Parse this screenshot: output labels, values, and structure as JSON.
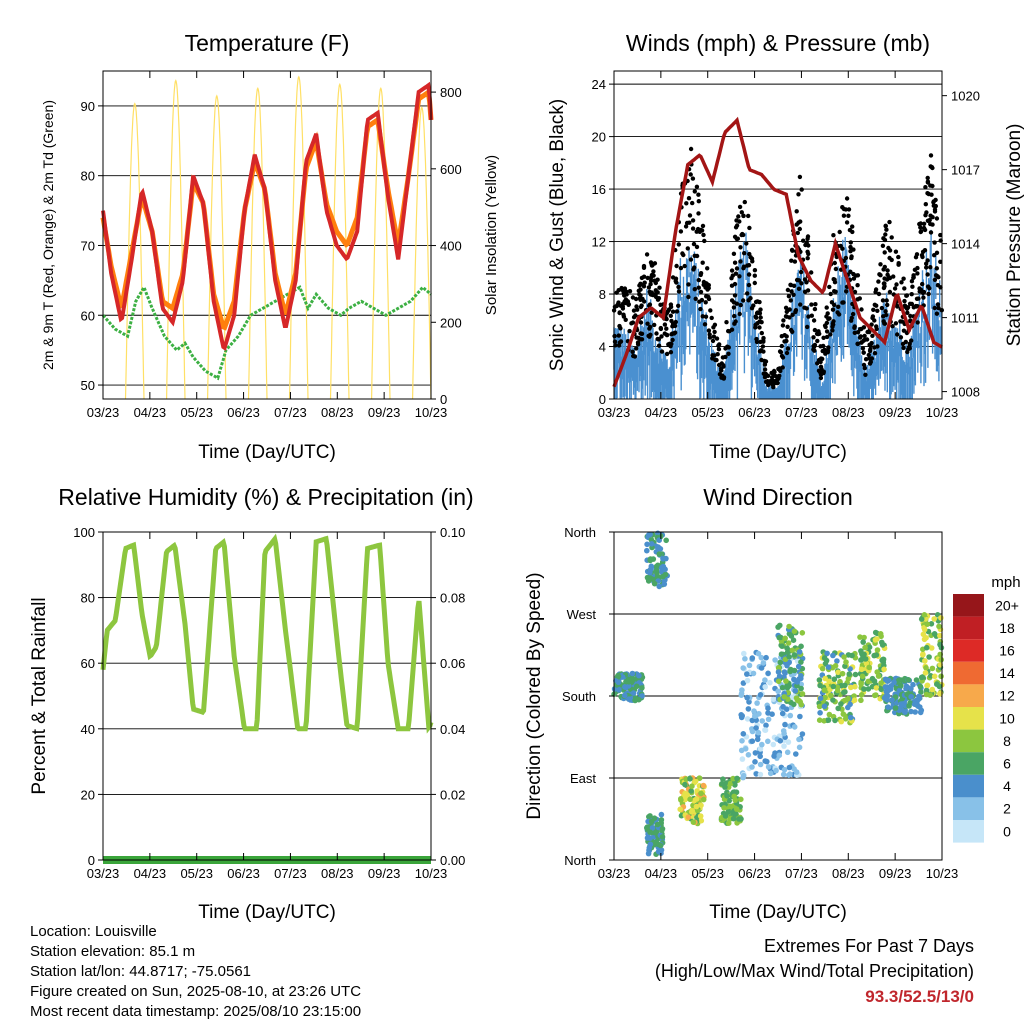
{
  "colors": {
    "temp2m": "#d62728",
    "temp9m": "#ff7f0e",
    "dewpoint": "#3cb043",
    "solar": "#ffe066",
    "wind": "#4a90d0",
    "gust": "#000000",
    "pressure": "#a31515",
    "rh": "#8dc63f",
    "precip": "#3aa53a",
    "speed_scale": [
      "#c6e6f8",
      "#88c1e8",
      "#4a8fcc",
      "#4aa564",
      "#8cc63f",
      "#e6e24a",
      "#f7a94b",
      "#ef6a32",
      "#dd2a26",
      "#c01f24",
      "#96161a"
    ]
  },
  "info": {
    "location": "Location: Louisville",
    "elevation": "Station elevation: 85.1 m",
    "latlon": "Station lat/lon: 44.8717; -75.0561",
    "created": "Figure created on Sun, 2025-08-10, at 23:26 UTC",
    "latest": "Most recent data timestamp: 2025/08/10 23:15:00"
  },
  "extremes": {
    "title": "Extremes For Past 7 Days",
    "subtitle": "(High/Low/Max Wind/Total Precipitation)",
    "values": "93.3/52.5/13/0"
  },
  "chart_data": [
    {
      "id": "temperature",
      "type": "line",
      "title": "Temperature (F)",
      "xlabel": "Time (Day/UTC)",
      "ylabel": "2m & 9m T (Red, Orange) & 2m Td (Green)",
      "y2label": "Solar Insolation (Yellow)",
      "x_ticks": [
        "03/23",
        "04/23",
        "05/23",
        "06/23",
        "07/23",
        "08/23",
        "09/23",
        "10/23"
      ],
      "ylim": [
        48,
        95
      ],
      "yticks": [
        50,
        60,
        70,
        80,
        90
      ],
      "y2lim": [
        0,
        855
      ],
      "y2ticks": [
        0,
        200,
        400,
        600,
        800
      ],
      "grid": true,
      "series": [
        {
          "key": "t2m",
          "axis": "left",
          "x": [
            0,
            0.2,
            0.45,
            0.7,
            0.95,
            1.2,
            1.45,
            1.7,
            1.95,
            2.2,
            2.45,
            2.7,
            2.95,
            3.2,
            3.45,
            3.7,
            3.95,
            4.2,
            4.45,
            4.7,
            4.95,
            5.2,
            5.45,
            5.7,
            5.95,
            6.2,
            6.45,
            6.7,
            6.95,
            7.2,
            7.45,
            7.7,
            7.95,
            8.0
          ],
          "values": [
            75,
            66,
            59,
            68,
            78,
            72,
            61,
            59,
            65,
            80,
            76,
            62,
            55,
            60,
            75,
            83,
            78,
            65,
            58,
            65,
            82,
            86,
            75,
            70,
            68,
            72,
            88,
            89,
            77,
            68,
            80,
            92,
            93,
            88
          ]
        },
        {
          "key": "t9m",
          "axis": "left",
          "x": [
            0,
            0.2,
            0.45,
            0.7,
            0.95,
            1.2,
            1.45,
            1.7,
            1.95,
            2.2,
            2.45,
            2.7,
            2.95,
            3.2,
            3.45,
            3.7,
            3.95,
            4.2,
            4.45,
            4.7,
            4.95,
            5.2,
            5.45,
            5.7,
            5.95,
            6.2,
            6.45,
            6.7,
            6.95,
            7.2,
            7.45,
            7.7,
            7.95,
            8.0
          ],
          "values": [
            74,
            67,
            61,
            69,
            77,
            72,
            62,
            61,
            66,
            79,
            76,
            63,
            58,
            62,
            75,
            82,
            78,
            66,
            60,
            66,
            81,
            85,
            76,
            72,
            70,
            74,
            87,
            88,
            78,
            70,
            80,
            91,
            92,
            88
          ]
        },
        {
          "key": "td2m",
          "axis": "left",
          "x": [
            0,
            0.3,
            0.6,
            0.8,
            1.0,
            1.2,
            1.5,
            1.8,
            2.0,
            2.2,
            2.5,
            2.8,
            3.0,
            3.3,
            3.6,
            3.9,
            4.2,
            4.5,
            4.8,
            5.0,
            5.2,
            5.5,
            5.8,
            6.0,
            6.3,
            6.6,
            6.9,
            7.2,
            7.5,
            7.8,
            8.0
          ],
          "values": [
            60,
            58,
            57,
            62,
            64,
            61,
            57,
            55,
            56,
            54,
            52,
            51,
            55,
            57,
            60,
            61,
            62,
            63,
            64,
            61,
            63,
            61,
            60,
            61,
            62,
            61,
            60,
            61,
            62,
            64,
            63
          ]
        },
        {
          "key": "solar",
          "axis": "right",
          "x": [
            0.55,
            0.6,
            0.78,
            0.95,
            1.55,
            1.6,
            1.78,
            1.95,
            2.55,
            2.6,
            2.78,
            2.95,
            3.55,
            3.6,
            3.78,
            3.95,
            4.55,
            4.6,
            4.78,
            4.95,
            5.55,
            5.6,
            5.78,
            5.95,
            6.55,
            6.6,
            6.78,
            6.95,
            7.55,
            7.6,
            7.78,
            7.95
          ],
          "peaks": [
            770,
            830,
            790,
            810,
            840,
            820,
            810,
            760
          ]
        }
      ]
    },
    {
      "id": "winds",
      "type": "scatter",
      "title": "Winds (mph) & Pressure (mb)",
      "xlabel": "Time (Day/UTC)",
      "ylabel": "Sonic Wind & Gust (Blue, Black)",
      "y2label": "Station Pressure (Maroon)",
      "x_ticks": [
        "03/23",
        "04/23",
        "05/23",
        "06/23",
        "07/23",
        "08/23",
        "09/23",
        "10/23"
      ],
      "ylim": [
        0,
        25
      ],
      "yticks": [
        0,
        4,
        8,
        12,
        16,
        20,
        24
      ],
      "y2lim": [
        1007.7,
        1021
      ],
      "y2ticks": [
        1008,
        1011,
        1014,
        1017,
        1020
      ],
      "grid": true,
      "wind_envelope": [
        6,
        5,
        4,
        8,
        5,
        3,
        10,
        12,
        8,
        4,
        2,
        8,
        12,
        6,
        1,
        1,
        6,
        11,
        6,
        1,
        7,
        12,
        7,
        2,
        5,
        8,
        6,
        4,
        9,
        12,
        8
      ],
      "gust_envelope": [
        9,
        8,
        7,
        11,
        9,
        6,
        14,
        18,
        13,
        6,
        3,
        12,
        15,
        9,
        2,
        2,
        9,
        16,
        10,
        3,
        11,
        16,
        11,
        4,
        8,
        13,
        10,
        7,
        13,
        17,
        12
      ],
      "pressure": {
        "x": [
          0,
          0.3,
          0.6,
          0.9,
          1.2,
          1.5,
          1.8,
          2.1,
          2.4,
          2.7,
          3.0,
          3.3,
          3.6,
          3.9,
          4.2,
          4.5,
          4.8,
          5.1,
          5.4,
          5.7,
          6.0,
          6.3,
          6.6,
          6.9,
          7.2,
          7.5,
          7.8,
          8.0
        ],
        "values": [
          1008.2,
          1009.5,
          1011.0,
          1011.4,
          1011.0,
          1014.5,
          1017.2,
          1017.6,
          1016.5,
          1018.5,
          1019.0,
          1017.0,
          1016.8,
          1016.2,
          1016.0,
          1013.5,
          1012.5,
          1012.0,
          1014.0,
          1012.5,
          1011.0,
          1010.5,
          1010.0,
          1012.0,
          1010.5,
          1011.5,
          1010.0,
          1009.8
        ]
      }
    },
    {
      "id": "humidity",
      "type": "line",
      "title": "Relative Humidity (%) & Precipitation (in)",
      "xlabel": "Time (Day/UTC)",
      "ylabel": "Percent & Total Rainfall",
      "x_ticks": [
        "03/23",
        "04/23",
        "05/23",
        "06/23",
        "07/23",
        "08/23",
        "09/23",
        "10/23"
      ],
      "ylim": [
        0,
        100
      ],
      "yticks": [
        0,
        20,
        40,
        60,
        80,
        100
      ],
      "y2lim": [
        0,
        0.1
      ],
      "y2ticks": [
        "0.00",
        "0.02",
        "0.04",
        "0.06",
        "0.08",
        "0.10"
      ],
      "grid": true,
      "series": [
        {
          "key": "rh",
          "x": [
            0,
            0.1,
            0.3,
            0.55,
            0.75,
            0.95,
            1.15,
            1.3,
            1.55,
            1.75,
            2.0,
            2.2,
            2.45,
            2.75,
            2.95,
            3.2,
            3.45,
            3.75,
            3.95,
            4.2,
            4.45,
            4.75,
            4.95,
            5.2,
            5.45,
            5.75,
            5.95,
            6.2,
            6.45,
            6.75,
            6.95,
            7.2,
            7.45,
            7.7,
            7.95,
            8.0
          ],
          "values": [
            58,
            70,
            73,
            95,
            96,
            75,
            62,
            65,
            94,
            96,
            72,
            46,
            45,
            95,
            97,
            62,
            40,
            40,
            94,
            98,
            70,
            40,
            40,
            97,
            98,
            62,
            41,
            40,
            95,
            96,
            60,
            40,
            40,
            80,
            40,
            42
          ]
        },
        {
          "key": "precip",
          "x": [
            0,
            8
          ],
          "values": [
            0,
            0
          ]
        }
      ]
    },
    {
      "id": "wind_direction",
      "type": "scatter",
      "title": "Wind Direction",
      "xlabel": "Time (Day/UTC)",
      "ylabel": "Direction (Colored By Speed)",
      "x_ticks": [
        "03/23",
        "04/23",
        "05/23",
        "06/23",
        "07/23",
        "08/23",
        "09/23",
        "10/23"
      ],
      "y_ticks": [
        "North",
        "East",
        "South",
        "West",
        "North"
      ],
      "ylim": [
        0,
        360
      ],
      "grid": true,
      "colorbar": {
        "title": "mph",
        "labels": [
          "20+",
          "18",
          "16",
          "14",
          "12",
          "10",
          "8",
          "6",
          "4",
          "2",
          "0"
        ]
      },
      "clusters": [
        {
          "x0": 0.0,
          "x1": 0.7,
          "y0": 175,
          "y1": 205,
          "speed": [
            3,
            7
          ]
        },
        {
          "x0": 0.8,
          "x1": 1.3,
          "y0": 300,
          "y1": 360,
          "speed": [
            3,
            7
          ]
        },
        {
          "x0": 0.8,
          "x1": 1.2,
          "y0": 5,
          "y1": 50,
          "speed": [
            3,
            7
          ]
        },
        {
          "x0": 1.6,
          "x1": 2.2,
          "y0": 40,
          "y1": 90,
          "speed": [
            6,
            12
          ]
        },
        {
          "x0": 2.6,
          "x1": 3.1,
          "y0": 40,
          "y1": 90,
          "speed": [
            5,
            9
          ]
        },
        {
          "x0": 3.1,
          "x1": 4.6,
          "y0": 90,
          "y1": 230,
          "speed": [
            0,
            5
          ]
        },
        {
          "x0": 4.0,
          "x1": 4.6,
          "y0": 170,
          "y1": 260,
          "speed": [
            4,
            8
          ]
        },
        {
          "x0": 5.0,
          "x1": 5.9,
          "y0": 150,
          "y1": 230,
          "speed": [
            4,
            10
          ]
        },
        {
          "x0": 6.0,
          "x1": 6.6,
          "y0": 175,
          "y1": 250,
          "speed": [
            5,
            10
          ]
        },
        {
          "x0": 6.6,
          "x1": 7.5,
          "y0": 160,
          "y1": 200,
          "speed": [
            3,
            6
          ]
        },
        {
          "x0": 7.5,
          "x1": 8.0,
          "y0": 180,
          "y1": 270,
          "speed": [
            5,
            11
          ]
        }
      ]
    }
  ]
}
